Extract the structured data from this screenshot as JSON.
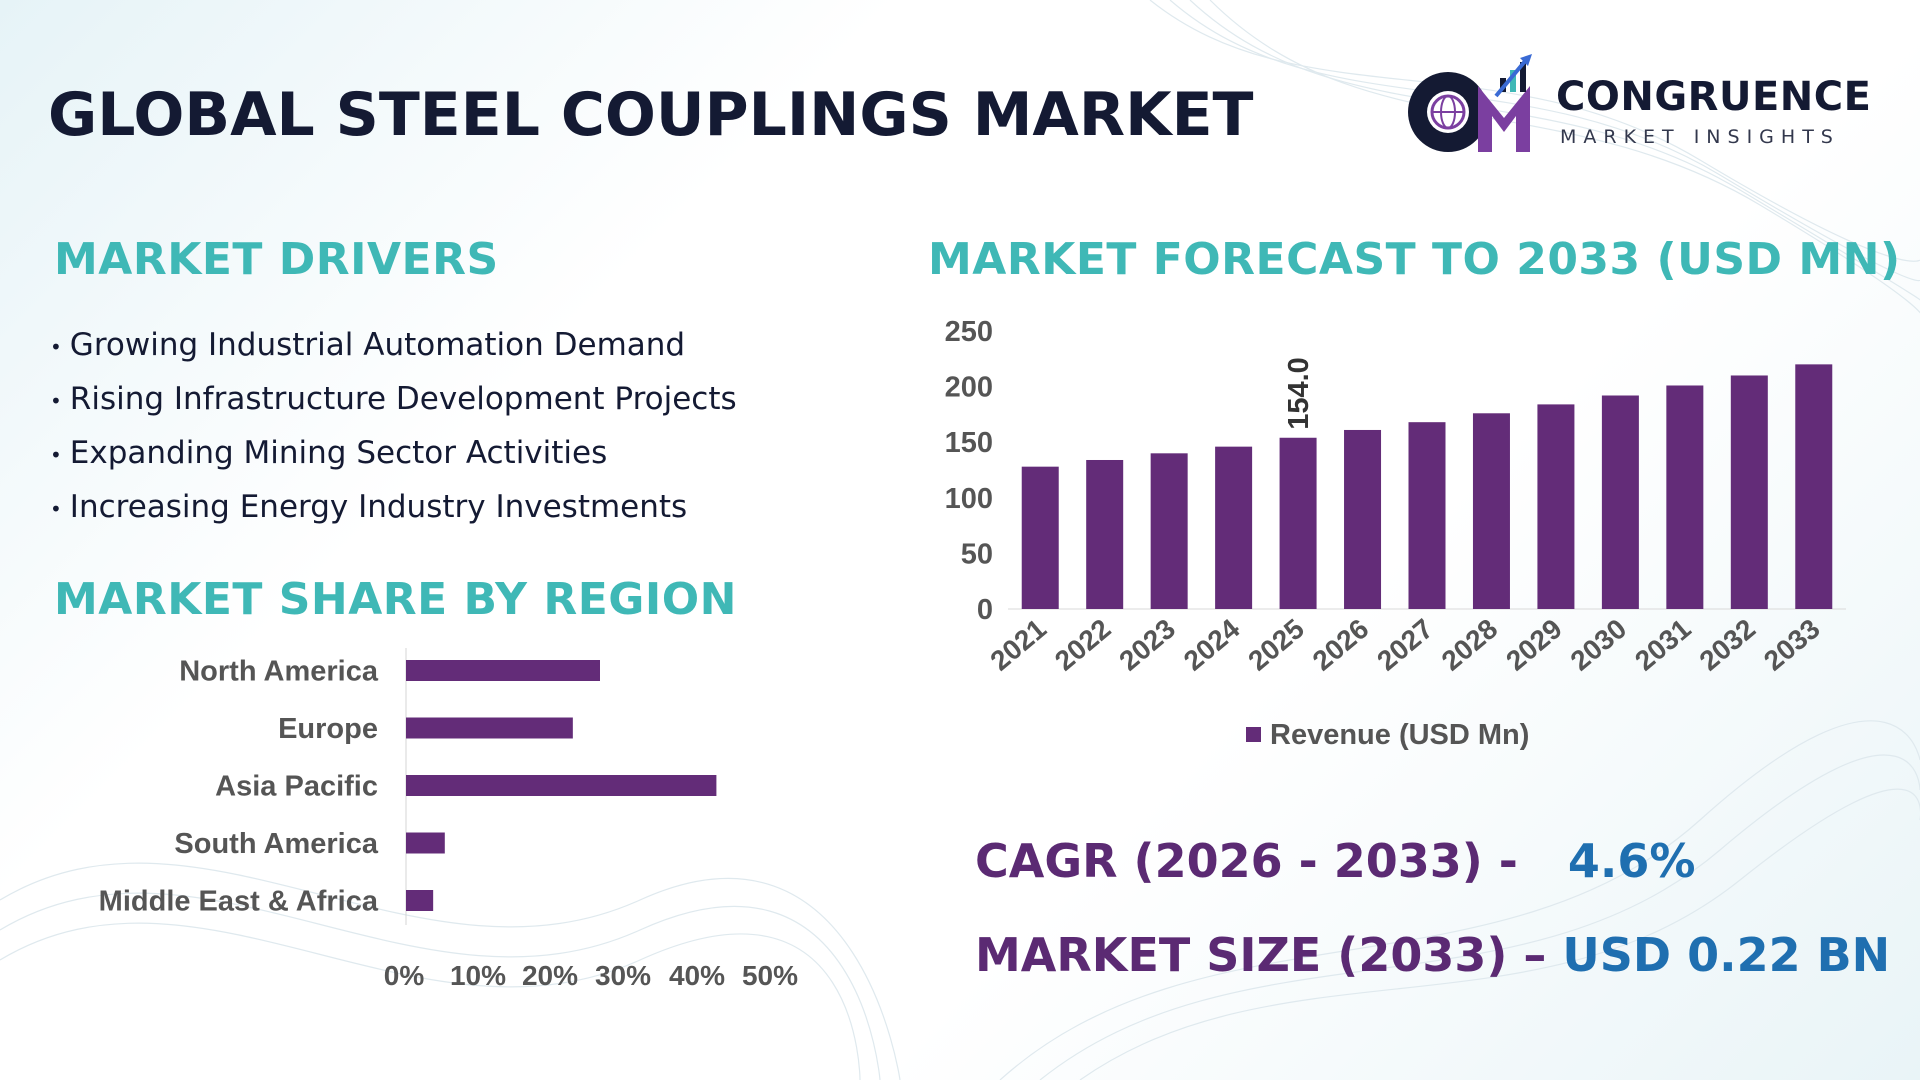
{
  "title": "GLOBAL STEEL COUPLINGS MARKET",
  "logo": {
    "monogram": "CM",
    "name": "CONGRUENCE",
    "tagline": "MARKET INSIGHTS"
  },
  "drivers": {
    "heading": "MARKET DRIVERS",
    "items": [
      "Growing Industrial Automation Demand",
      "Rising Infrastructure Development Projects",
      "Expanding Mining Sector Activities",
      "Increasing Energy Industry Investments"
    ]
  },
  "region": {
    "heading": "MARKET SHARE BY REGION"
  },
  "forecast": {
    "heading": "MARKET FORECAST TO 2033 (USD MN)"
  },
  "stats": {
    "cagr_label": "CAGR (2026 - 2033) -",
    "cagr_value": "4.6%",
    "size_label": "MARKET SIZE (2033) –",
    "size_value": "USD 0.22 BN"
  },
  "colors": {
    "bar": "#632c78",
    "heading": "#3fb8b6",
    "stat_label": "#5b2a73",
    "stat_value": "#1f6fb0"
  },
  "chart_data": [
    {
      "type": "bar",
      "orientation": "horizontal",
      "categories": [
        "North America",
        "Europe",
        "Asia Pacific",
        "South America",
        "Middle East & Africa"
      ],
      "values": [
        25,
        21.5,
        40,
        5,
        3.5
      ],
      "tick_labels": [
        "0%",
        "10%",
        "20%",
        "30%",
        "40%",
        "50%"
      ],
      "xlim": [
        0,
        50
      ],
      "grid": false,
      "legend": "none"
    },
    {
      "type": "bar",
      "categories": [
        "2021",
        "2022",
        "2023",
        "2024",
        "2025",
        "2026",
        "2027",
        "2028",
        "2029",
        "2030",
        "2031",
        "2032",
        "2033"
      ],
      "series": [
        {
          "name": "Revenue (USD Mn)",
          "values": [
            128,
            134,
            140,
            146,
            154.0,
            161,
            168,
            176,
            184,
            192,
            201,
            210,
            220
          ]
        }
      ],
      "data_labels": [
        {
          "category": "2025",
          "text": "154.0"
        }
      ],
      "yticks": [
        "0",
        "50",
        "100",
        "150",
        "200",
        "250"
      ],
      "ylim": [
        0,
        250
      ],
      "grid": false,
      "legend": "bottom"
    }
  ]
}
